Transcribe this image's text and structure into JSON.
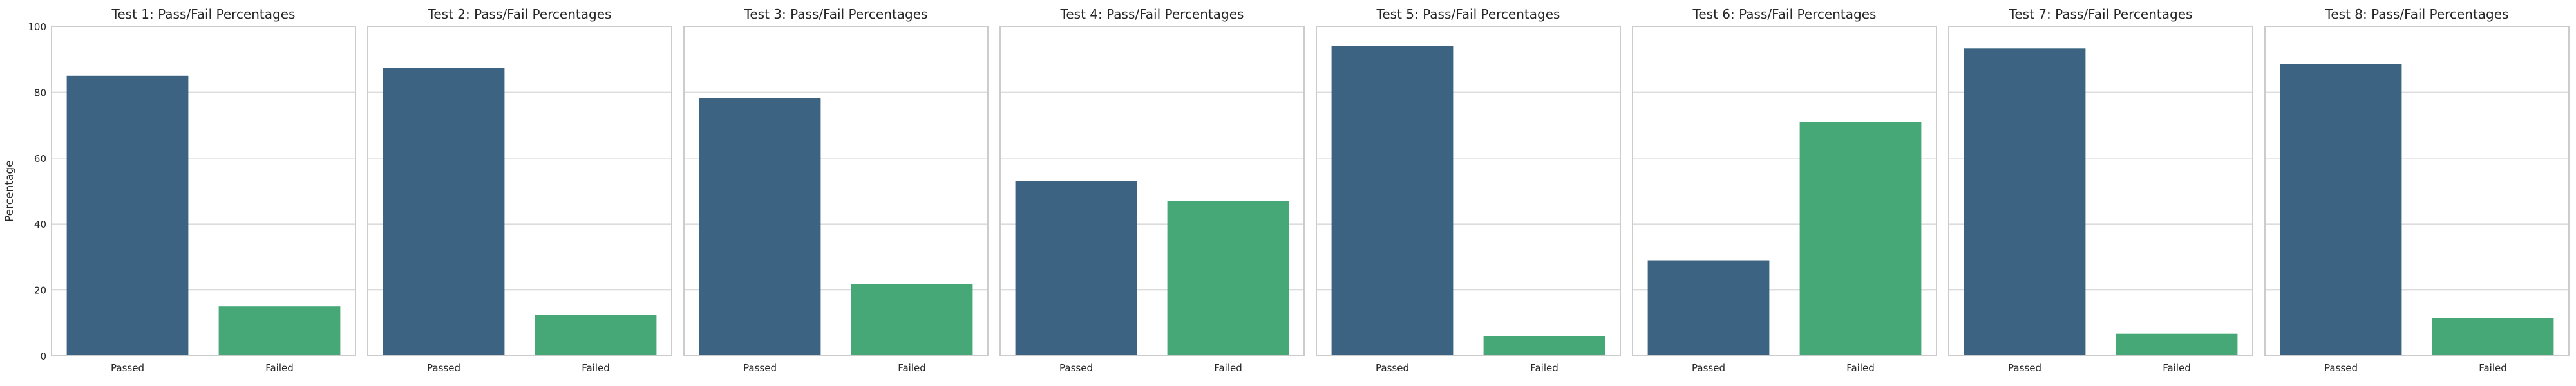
{
  "y_axis_label": "Percentage",
  "colors": {
    "passed": "#3c6482",
    "failed": "#45a876",
    "grid": "#dcdcdc",
    "frame": "#cccccc",
    "text": "#262626"
  },
  "chart_data": [
    {
      "type": "bar",
      "title": "Test 1: Pass/Fail Percentages",
      "categories": [
        "Passed",
        "Failed"
      ],
      "values": [
        85,
        15
      ],
      "ylim": [
        0,
        100
      ],
      "yticks": [
        0,
        20,
        40,
        60,
        80,
        100
      ],
      "grid": true
    },
    {
      "type": "bar",
      "title": "Test 2: Pass/Fail Percentages",
      "categories": [
        "Passed",
        "Failed"
      ],
      "values": [
        87.5,
        12.5
      ],
      "ylim": [
        0,
        100
      ],
      "yticks": [
        0,
        20,
        40,
        60,
        80,
        100
      ],
      "grid": true
    },
    {
      "type": "bar",
      "title": "Test 3: Pass/Fail Percentages",
      "categories": [
        "Passed",
        "Failed"
      ],
      "values": [
        78.3,
        21.7
      ],
      "ylim": [
        0,
        100
      ],
      "yticks": [
        0,
        20,
        40,
        60,
        80,
        100
      ],
      "grid": true
    },
    {
      "type": "bar",
      "title": "Test 4: Pass/Fail Percentages",
      "categories": [
        "Passed",
        "Failed"
      ],
      "values": [
        53,
        47
      ],
      "ylim": [
        0,
        100
      ],
      "yticks": [
        0,
        20,
        40,
        60,
        80,
        100
      ],
      "grid": true
    },
    {
      "type": "bar",
      "title": "Test 5: Pass/Fail Percentages",
      "categories": [
        "Passed",
        "Failed"
      ],
      "values": [
        94,
        6
      ],
      "ylim": [
        0,
        100
      ],
      "yticks": [
        0,
        20,
        40,
        60,
        80,
        100
      ],
      "grid": true
    },
    {
      "type": "bar",
      "title": "Test 6: Pass/Fail Percentages",
      "categories": [
        "Passed",
        "Failed"
      ],
      "values": [
        29,
        71
      ],
      "ylim": [
        0,
        100
      ],
      "yticks": [
        0,
        20,
        40,
        60,
        80,
        100
      ],
      "grid": true
    },
    {
      "type": "bar",
      "title": "Test 7: Pass/Fail Percentages",
      "categories": [
        "Passed",
        "Failed"
      ],
      "values": [
        93.3,
        6.7
      ],
      "ylim": [
        0,
        100
      ],
      "yticks": [
        0,
        20,
        40,
        60,
        80,
        100
      ],
      "grid": true
    },
    {
      "type": "bar",
      "title": "Test 8: Pass/Fail Percentages",
      "categories": [
        "Passed",
        "Failed"
      ],
      "values": [
        88.6,
        11.4
      ],
      "ylim": [
        0,
        100
      ],
      "yticks": [
        0,
        20,
        40,
        60,
        80,
        100
      ],
      "grid": true
    }
  ]
}
